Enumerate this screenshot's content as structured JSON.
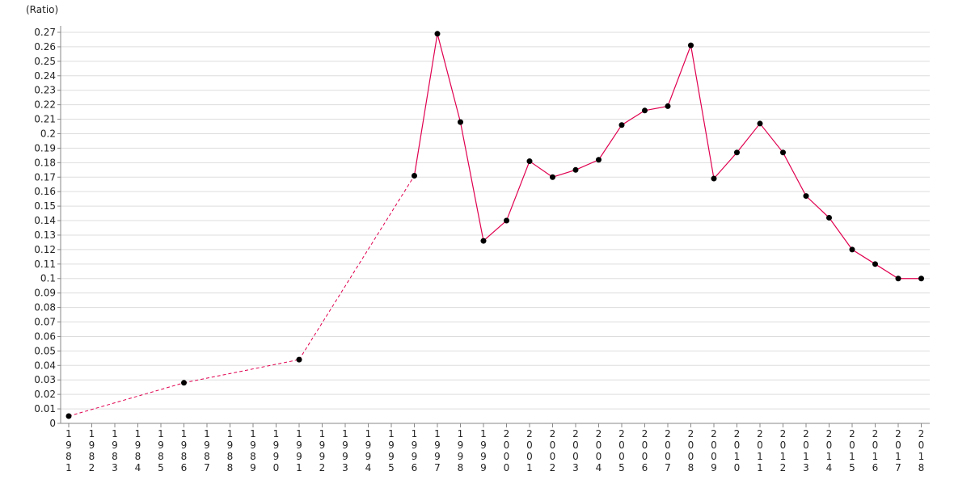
{
  "chart_data": {
    "type": "line",
    "y_label": "(Ratio)",
    "categories": [
      "1981",
      "1982",
      "1983",
      "1984",
      "1985",
      "1986",
      "1987",
      "1988",
      "1989",
      "1990",
      "1991",
      "1992",
      "1993",
      "1994",
      "1995",
      "1996",
      "1997",
      "1998",
      "1999",
      "2000",
      "2001",
      "2002",
      "2003",
      "2004",
      "2005",
      "2006",
      "2007",
      "2008",
      "2009",
      "2010",
      "2011",
      "2012",
      "2013",
      "2014",
      "2015",
      "2016",
      "2017",
      "2018"
    ],
    "series": [
      {
        "color": "#e0004f",
        "marker_color": "#000000",
        "values": [
          0.005,
          null,
          null,
          null,
          null,
          0.028,
          null,
          null,
          null,
          null,
          0.044,
          null,
          null,
          null,
          null,
          0.171,
          0.269,
          0.208,
          0.126,
          0.14,
          0.181,
          0.17,
          0.175,
          0.182,
          0.206,
          0.216,
          0.219,
          0.261,
          0.169,
          0.187,
          0.207,
          0.187,
          0.157,
          0.142,
          0.12,
          0.11,
          0.1,
          0.1
        ]
      }
    ],
    "ylim": [
      0,
      0.27
    ],
    "yticks": [
      0,
      0.01,
      0.02,
      0.03,
      0.04,
      0.05,
      0.06,
      0.07,
      0.08,
      0.09,
      0.1,
      0.11,
      0.12,
      0.13,
      0.14,
      0.15,
      0.16,
      0.17,
      0.18,
      0.19,
      0.2,
      0.21,
      0.22,
      0.23,
      0.24,
      0.25,
      0.26,
      0.27
    ],
    "grid": true,
    "gaps": "dashed"
  }
}
